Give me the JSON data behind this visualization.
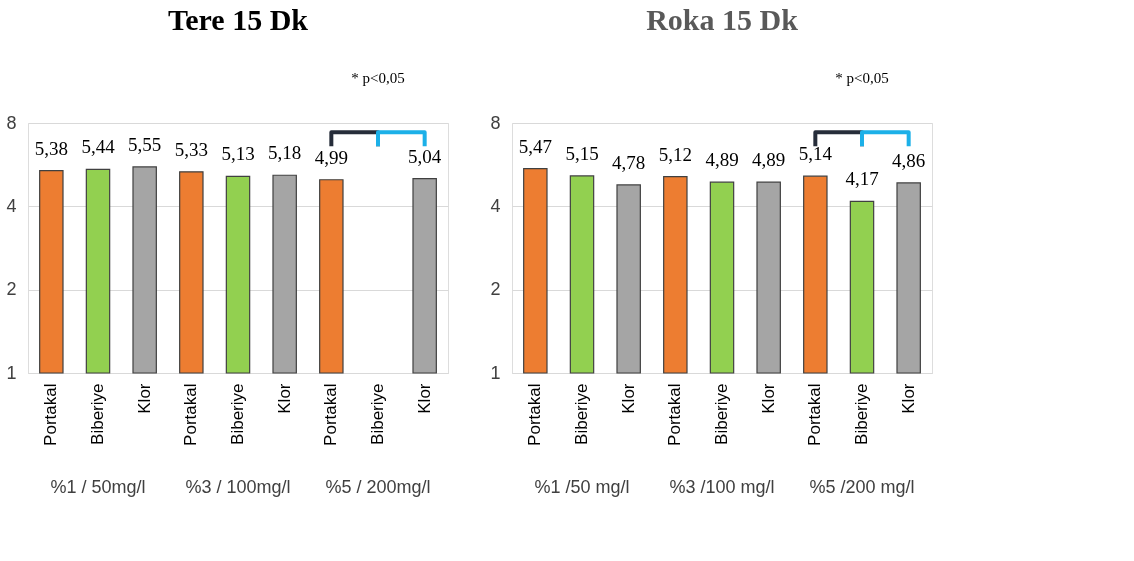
{
  "chart_data": [
    {
      "type": "bar",
      "title": "Tere 15 Dk",
      "categories": [
        "Portakal",
        "Biberiye",
        "Klor",
        "Portakal",
        "Biberiye",
        "Klor",
        "Portakal",
        "Biberiye",
        "Klor"
      ],
      "values": [
        5.38,
        5.44,
        5.55,
        5.33,
        5.13,
        5.18,
        4.99,
        null,
        5.04
      ],
      "value_labels": [
        "5,38",
        "5,44",
        "5,55",
        "5,33",
        "5,13",
        "5,18",
        "4,99",
        null,
        "5,04"
      ],
      "colors": [
        "#ed7d31",
        "#92d050",
        "#a5a5a5",
        "#ed7d31",
        "#92d050",
        "#a5a5a5",
        "#ed7d31",
        "#92d050",
        "#a5a5a5"
      ],
      "log": "y",
      "ylim": [
        1,
        8
      ],
      "yticks": [
        1,
        2,
        4,
        8
      ],
      "grid": "y",
      "annotations": [
        "%1 / 50mg/l",
        "%3 / 100mg/l",
        "%5 / 200mg/l",
        "* p<0,05"
      ]
    },
    {
      "type": "bar",
      "title": "Roka 15 Dk",
      "categories": [
        "Portakal",
        "Biberiye",
        "Klor",
        "Portakal",
        "Biberiye",
        "Klor",
        "Portakal",
        "Biberiye",
        "Klor"
      ],
      "values": [
        5.47,
        5.15,
        4.78,
        5.12,
        4.89,
        4.89,
        5.14,
        4.17,
        4.86
      ],
      "value_labels": [
        "5,47",
        "5,15",
        "4,78",
        "5,12",
        "4,89",
        "4,89",
        "5,14",
        "4,17",
        "4,86"
      ],
      "colors": [
        "#ed7d31",
        "#92d050",
        "#a5a5a5",
        "#ed7d31",
        "#92d050",
        "#a5a5a5",
        "#ed7d31",
        "#92d050",
        "#a5a5a5"
      ],
      "log": "y",
      "ylim": [
        1,
        8
      ],
      "yticks": [
        1,
        2,
        4,
        8
      ],
      "grid": "y",
      "annotations": [
        "%1 /50 mg/l",
        "%3 /100 mg/l",
        "%5 /200 mg/l",
        "* p<0,05"
      ]
    }
  ]
}
